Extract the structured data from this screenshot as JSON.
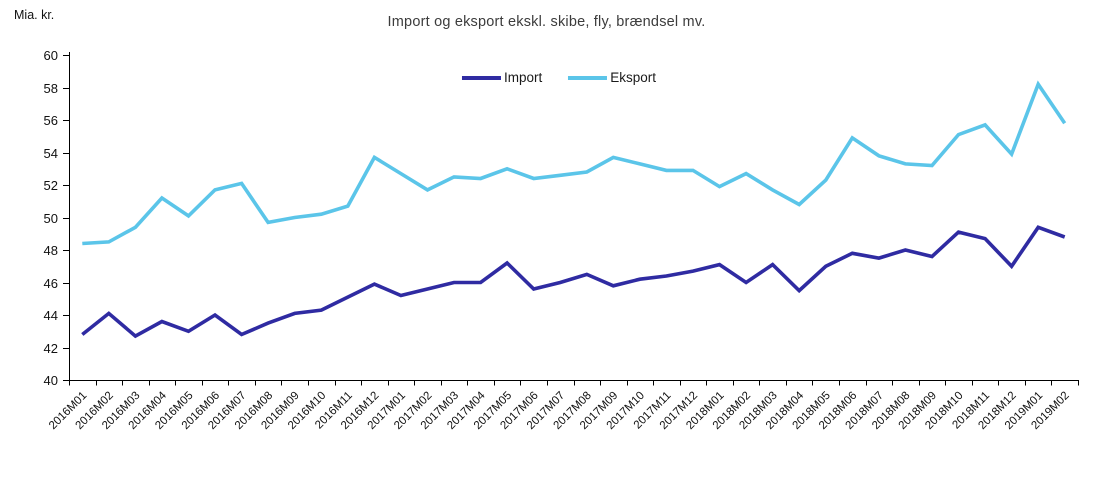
{
  "header": {
    "title": "Import og eksport ekskl. skibe, fly, brændsel mv.",
    "unit_label": "Mia. kr."
  },
  "chart_data": {
    "type": "line",
    "title": "Import og eksport ekskl. skibe, fly, brændsel mv.",
    "ylabel": "Mia. kr.",
    "xlabel": "",
    "ylim": [
      40,
      60
    ],
    "ytick_step": 2,
    "grid": false,
    "legend_position": "top-center",
    "axis_color": "#000000",
    "tick_label_color": "#111111",
    "categories": [
      "2016M01",
      "2016M02",
      "2016M03",
      "2016M04",
      "2016M05",
      "2016M06",
      "2016M07",
      "2016M08",
      "2016M09",
      "2016M10",
      "2016M11",
      "2016M12",
      "2017M01",
      "2017M02",
      "2017M03",
      "2017M04",
      "2017M05",
      "2017M06",
      "2017M07",
      "2017M08",
      "2017M09",
      "2017M10",
      "2017M11",
      "2017M12",
      "2018M01",
      "2018M02",
      "2018M03",
      "2018M04",
      "2018M05",
      "2018M06",
      "2018M07",
      "2018M08",
      "2018M09",
      "2018M10",
      "2018M11",
      "2018M12",
      "2019M01",
      "2019M02"
    ],
    "series": [
      {
        "name": "Import",
        "color": "#2f2ba2",
        "values": [
          42.8,
          44.1,
          42.7,
          43.6,
          43.0,
          44.0,
          42.8,
          43.5,
          44.1,
          44.3,
          45.1,
          45.9,
          45.2,
          45.6,
          46.0,
          46.0,
          47.2,
          45.6,
          46.0,
          46.5,
          45.8,
          46.2,
          46.4,
          46.7,
          47.1,
          46.0,
          47.1,
          45.5,
          47.0,
          47.8,
          47.5,
          48.0,
          47.6,
          49.1,
          48.7,
          47.0,
          49.4,
          48.8
        ]
      },
      {
        "name": "Eksport",
        "color": "#5bc5e9",
        "values": [
          48.4,
          48.5,
          49.4,
          51.2,
          50.1,
          51.7,
          52.1,
          49.7,
          50.0,
          50.2,
          50.7,
          53.7,
          52.7,
          51.7,
          52.5,
          52.4,
          53.0,
          52.4,
          52.6,
          52.8,
          53.7,
          53.3,
          52.9,
          52.9,
          51.9,
          52.7,
          51.7,
          50.8,
          52.3,
          54.9,
          53.8,
          53.3,
          53.2,
          55.1,
          55.7,
          53.9,
          58.2,
          55.8
        ]
      }
    ]
  }
}
